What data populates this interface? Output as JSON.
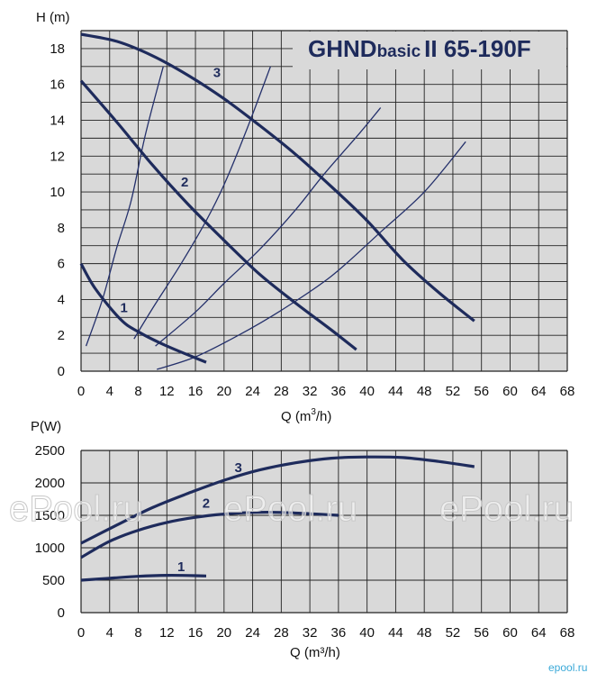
{
  "chart_data": [
    {
      "type": "line",
      "title": "GHNDbasic II  65-190F",
      "title_parts": [
        "GHND",
        "basic",
        "II  65-190F"
      ],
      "xlabel": "Q (m³/h)",
      "xlabel_parts": [
        "Q (m",
        "3",
        "/h)"
      ],
      "ylabel": "H (m)",
      "xlim": [
        0,
        68
      ],
      "ylim": [
        0,
        19
      ],
      "x_ticks": [
        0,
        4,
        8,
        12,
        16,
        20,
        24,
        28,
        32,
        36,
        40,
        44,
        48,
        52,
        56,
        60,
        64,
        68
      ],
      "y_ticks": [
        0,
        2,
        4,
        6,
        8,
        10,
        12,
        14,
        16,
        18
      ],
      "grid": true,
      "series": [
        {
          "name": "1",
          "x": [
            0,
            2,
            5.5,
            8,
            12,
            17.5
          ],
          "y": [
            6,
            4.6,
            2.9,
            2.2,
            1.4,
            0.5
          ]
        },
        {
          "name": "2",
          "x": [
            0,
            5,
            10,
            15,
            20,
            25,
            30,
            35,
            38.5
          ],
          "y": [
            16.2,
            13.9,
            11.5,
            9.3,
            7.3,
            5.4,
            3.8,
            2.3,
            1.2
          ]
        },
        {
          "name": "3",
          "x": [
            0,
            5,
            10,
            15,
            20,
            25,
            30,
            35,
            40,
            45,
            50,
            55
          ],
          "y": [
            18.8,
            18.4,
            17.6,
            16.5,
            15.2,
            13.7,
            12.1,
            10.3,
            8.4,
            6.2,
            4.4,
            2.8
          ]
        }
      ],
      "system_curves": [
        {
          "x": [
            0.7,
            3,
            5,
            7,
            9,
            11.5
          ],
          "y": [
            1.4,
            4.0,
            6.9,
            9.5,
            13.2,
            17.0
          ]
        },
        {
          "x": [
            7.4,
            10,
            14,
            17.5,
            20,
            23,
            26.5
          ],
          "y": [
            1.8,
            3.5,
            6.0,
            8.4,
            10.4,
            13.3,
            17.0
          ]
        },
        {
          "x": [
            10.4,
            16,
            20,
            25,
            30,
            34,
            39,
            41.9
          ],
          "y": [
            1.4,
            3.3,
            4.9,
            6.8,
            9.0,
            11.0,
            13.3,
            14.7
          ]
        },
        {
          "x": [
            10.6,
            16,
            22,
            28,
            35,
            42,
            48,
            53.8
          ],
          "y": [
            0.1,
            0.8,
            2.0,
            3.4,
            5.3,
            7.8,
            10.0,
            12.8
          ]
        }
      ],
      "curve_labels": [
        "1",
        "2",
        "3"
      ]
    },
    {
      "type": "line",
      "title": "",
      "xlabel": "Q (m³/h)",
      "ylabel": "P(W)",
      "xlim": [
        0,
        68
      ],
      "ylim": [
        0,
        2500
      ],
      "x_ticks": [
        0,
        4,
        8,
        12,
        16,
        20,
        24,
        28,
        32,
        36,
        40,
        44,
        48,
        52,
        56,
        60,
        64,
        68
      ],
      "y_ticks": [
        0,
        500,
        1000,
        1500,
        2000,
        2500
      ],
      "grid": true,
      "series": [
        {
          "name": "1",
          "x": [
            0,
            4,
            8,
            12,
            16,
            17.5
          ],
          "y": [
            500,
            530,
            560,
            575,
            570,
            565
          ]
        },
        {
          "name": "2",
          "x": [
            0,
            4,
            8,
            12,
            16,
            20,
            24,
            28,
            32,
            36
          ],
          "y": [
            850,
            1100,
            1270,
            1390,
            1470,
            1520,
            1545,
            1545,
            1525,
            1500
          ]
        },
        {
          "name": "3",
          "x": [
            0,
            5,
            10,
            15,
            20,
            25,
            30,
            35,
            40,
            45,
            50,
            55
          ],
          "y": [
            1070,
            1350,
            1620,
            1840,
            2040,
            2200,
            2310,
            2380,
            2400,
            2390,
            2330,
            2250
          ]
        }
      ],
      "curve_labels": [
        "1",
        "2",
        "3"
      ]
    }
  ],
  "watermarks": [
    "ePool.ru",
    "ePool.ru",
    "ePool.ru"
  ],
  "brand": "epool.ru",
  "colors": {
    "curve": "#1e2b5c",
    "system_curve": "#24306b",
    "plot_bg": "#d9d9d9",
    "grid": "#222222"
  }
}
